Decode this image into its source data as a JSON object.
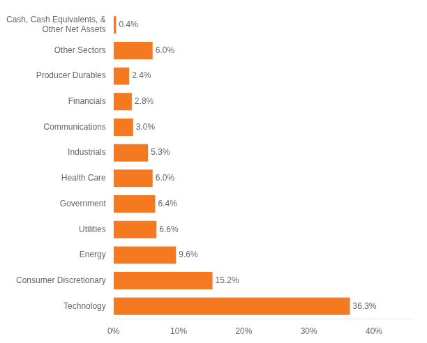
{
  "chart_data": {
    "type": "bar",
    "orientation": "horizontal",
    "categories": [
      "Technology",
      "Consumer Discretionary",
      "Energy",
      "Utilities",
      "Government",
      "Health Care",
      "Industrials",
      "Communications",
      "Financials",
      "Producer Durables",
      "Other Sectors",
      "Cash, Cash Equivalents, &\nOther Net Assets"
    ],
    "values": [
      36.3,
      15.2,
      9.6,
      6.6,
      6.4,
      6.0,
      5.3,
      3.0,
      2.8,
      2.4,
      6.0,
      0.4
    ],
    "value_labels": [
      "36.3%",
      "15.2%",
      "9.6%",
      "6.6%",
      "6.4%",
      "6.0%",
      "5.3%",
      "3.0%",
      "2.8%",
      "2.4%",
      "6.0%",
      "0.4%"
    ],
    "data_labels": true,
    "color": "#F47920",
    "xlim": [
      0,
      46
    ],
    "xticks": [
      {
        "value": 0,
        "label": "0%"
      },
      {
        "value": 10,
        "label": "10%"
      },
      {
        "value": 20,
        "label": "20%"
      },
      {
        "value": 30,
        "label": "30%"
      },
      {
        "value": 40,
        "label": "40%"
      }
    ],
    "grid": false
  }
}
